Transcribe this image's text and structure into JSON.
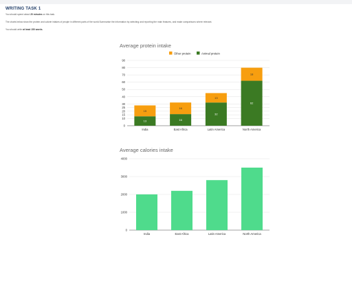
{
  "header": {
    "title": "WRITING TASK 1",
    "time_prefix": "You should spend about",
    "time_bold": "20 minutes",
    "time_suffix": "on this task.",
    "prompt": "The charts below show the protein and calorie intakes of people in different parts of the world.Summarise the information by selecting and reporting the main features, and make comparisons where relevant.",
    "words_prefix": "You should write",
    "words_bold": "at least 150 words."
  },
  "colors": {
    "other": "#f79e0f",
    "animal": "#3b7a23",
    "calories": "#4fdb8c",
    "grid": "#e2e2e2"
  },
  "chart_data": [
    {
      "type": "bar",
      "stacked": true,
      "title": "Average protein intake",
      "categories": [
        "India",
        "East Africa",
        "Latin America",
        "North America"
      ],
      "series": [
        {
          "name": "Other protein",
          "values": [
            15,
            16,
            13,
            18
          ]
        },
        {
          "name": "Animal protein",
          "values": [
            13,
            16,
            32,
            62
          ]
        }
      ],
      "ylim": [
        0,
        90
      ],
      "yticks": [
        0,
        10,
        15,
        20,
        25,
        30,
        40,
        50,
        60,
        70,
        80,
        90
      ],
      "legend": "top",
      "grid": true
    },
    {
      "type": "bar",
      "title": "Average calories intake",
      "categories": [
        "India",
        "East Africa",
        "Latin America",
        "North America"
      ],
      "series": [
        {
          "values": [
            2000,
            2200,
            2800,
            3500
          ]
        }
      ],
      "ylim": [
        0,
        4000
      ],
      "yticks": [
        0,
        1000,
        2000,
        3000,
        4000
      ],
      "grid": true
    }
  ]
}
